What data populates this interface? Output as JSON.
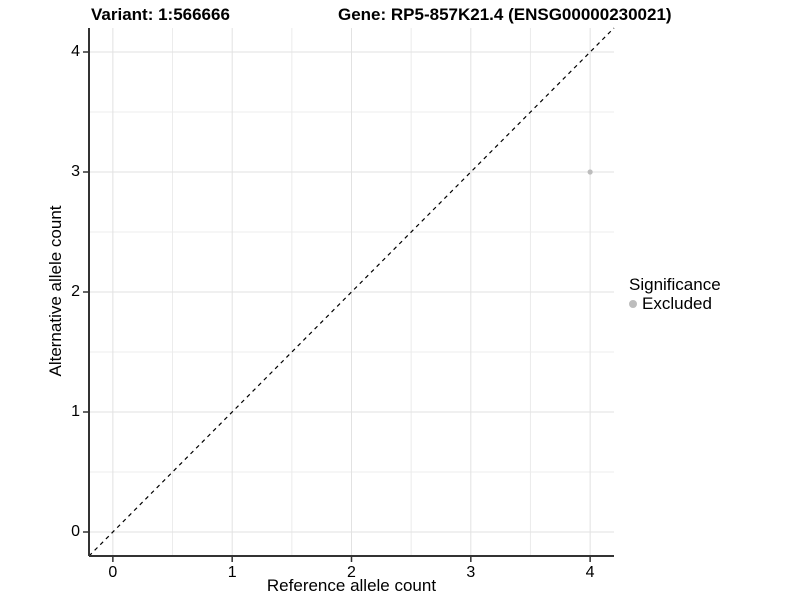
{
  "titles": {
    "variant": "Variant: 1:566666",
    "gene": "Gene: RP5-857K21.4 (ENSG00000230021)"
  },
  "chart_data": {
    "type": "scatter",
    "xlabel": "Reference allele count",
    "ylabel": "Alternative allele count",
    "xlim": [
      -0.2,
      4.2
    ],
    "ylim": [
      -0.2,
      4.2
    ],
    "xticks": [
      0,
      1,
      2,
      3,
      4
    ],
    "yticks": [
      0,
      1,
      2,
      3,
      4
    ],
    "minor_grid_step": 0.5,
    "grid": true,
    "series": [
      {
        "name": "Excluded",
        "color": "#bdbdbd",
        "points": [
          {
            "x": 4,
            "y": 3
          }
        ]
      }
    ],
    "reference_line": {
      "kind": "identity",
      "style": "dashed",
      "color": "#000000",
      "from": [
        -0.2,
        -0.2
      ],
      "to": [
        4.2,
        4.2
      ]
    },
    "legend": {
      "title": "Significance",
      "position": "right",
      "entries": [
        {
          "label": "Excluded",
          "color": "#bdbdbd"
        }
      ]
    }
  },
  "colors": {
    "background": "#ffffff",
    "grid_major": "#e2e2e2",
    "grid_minor": "#ececec",
    "axis_line": "#333333",
    "tick_mark": "#333333",
    "text": "#000000",
    "point": "#bdbdbd"
  }
}
